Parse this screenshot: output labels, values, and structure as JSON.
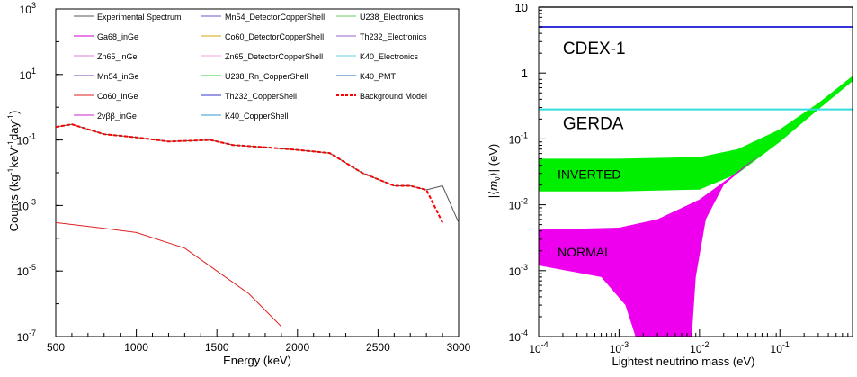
{
  "chart_data": [
    {
      "type": "line",
      "xlabel": "Energy (keV)",
      "ylabel": "Counts (kg",
      "ylabel_sup1": "-1",
      "ylabel_mid1": "keV",
      "ylabel_sup2": "-1",
      "ylabel_mid2": "day",
      "ylabel_sup3": "-1",
      "ylabel_end": ")",
      "x_ticks": [
        "500",
        "1000",
        "1500",
        "2000",
        "2500",
        "3000"
      ],
      "y_tick_mantissa": [
        "10",
        "10",
        "10",
        "10",
        "10",
        "10"
      ],
      "y_tick_exponents": [
        "3",
        "1",
        "-1",
        "-3",
        "-5",
        "-7"
      ],
      "xlim": [
        500,
        3000
      ],
      "ylim": [
        1e-07,
        1000
      ],
      "yscale": "log",
      "legend_placement": "top",
      "series": [
        {
          "name": "Experimental Spectrum",
          "color": "#555555",
          "values": [
            [
              500,
              0.25
            ],
            [
              600,
              0.3
            ],
            [
              800,
              0.15
            ],
            [
              1000,
              0.12
            ],
            [
              1200,
              0.09
            ],
            [
              1460,
              0.1
            ],
            [
              1600,
              0.07
            ],
            [
              1800,
              0.06
            ],
            [
              2000,
              0.05
            ],
            [
              2200,
              0.04
            ],
            [
              2400,
              0.01
            ],
            [
              2600,
              0.004
            ],
            [
              2700,
              0.004
            ],
            [
              2800,
              0.003
            ],
            [
              2900,
              0.004
            ],
            [
              3000,
              0.0003
            ]
          ]
        },
        {
          "name": "Ga68_inGe",
          "color": "#cc00cc",
          "values": []
        },
        {
          "name": "Zn65_inGe",
          "color": "#e07bcf",
          "values": []
        },
        {
          "name": "Mn54_inGe",
          "color": "#7744aa",
          "values": []
        },
        {
          "name": "Co60_inGe",
          "color": "#dd2222",
          "values": [
            [
              500,
              0.0003
            ],
            [
              800,
              0.0002
            ],
            [
              1000,
              0.00015
            ],
            [
              1300,
              5e-05
            ],
            [
              1500,
              1e-05
            ],
            [
              1700,
              2e-06
            ],
            [
              1900,
              2e-07
            ]
          ]
        },
        {
          "name": "2vββ_inGe",
          "color": "#cc22cc",
          "values": []
        },
        {
          "name": "Mn54_DetectorCopperShell",
          "color": "#6a5acd",
          "values": []
        },
        {
          "name": "Co60_DetectorCopperShell",
          "color": "#ccaa00",
          "values": []
        },
        {
          "name": "Zn65_DetectorCopperShell",
          "color": "#f0a0e0",
          "values": []
        },
        {
          "name": "U238_Rn_CopperShell",
          "color": "#33cc33",
          "values": []
        },
        {
          "name": "Th232_CopperShell",
          "color": "#3333cc",
          "values": []
        },
        {
          "name": "K40_CopperShell",
          "color": "#3399cc",
          "values": []
        },
        {
          "name": "U238_Electronics",
          "color": "#66cc66",
          "values": []
        },
        {
          "name": "Th232_Electronics",
          "color": "#9966cc",
          "values": []
        },
        {
          "name": "K40_Electronics",
          "color": "#66ccdd",
          "values": []
        },
        {
          "name": "K40_PMT",
          "color": "#2266aa",
          "values": []
        },
        {
          "name": "Background Model",
          "color": "#ff0000",
          "values": [
            [
              500,
              0.25
            ],
            [
              600,
              0.3
            ],
            [
              800,
              0.15
            ],
            [
              1000,
              0.12
            ],
            [
              1200,
              0.09
            ],
            [
              1460,
              0.1
            ],
            [
              1600,
              0.07
            ],
            [
              1800,
              0.06
            ],
            [
              2000,
              0.05
            ],
            [
              2200,
              0.04
            ],
            [
              2400,
              0.01
            ],
            [
              2600,
              0.004
            ],
            [
              2700,
              0.004
            ],
            [
              2800,
              0.003
            ],
            [
              2900,
              0.0003
            ]
          ]
        }
      ]
    },
    {
      "type": "area",
      "xlabel": "Lightest neutrino mass (eV)",
      "ylabel": "(eV)",
      "x_tick_mantissa": [
        "10",
        "10",
        "10",
        "10"
      ],
      "x_tick_exponents": [
        "-4",
        "-3",
        "-2",
        "-1"
      ],
      "y_ticks": [
        "10",
        "1"
      ],
      "y_tick_mantissa": [
        "10",
        "10",
        "10",
        "10"
      ],
      "y_tick_exponents": [
        "-1",
        "-2",
        "-3",
        "-4"
      ],
      "xlim": [
        0.0001,
        0.8
      ],
      "ylim": [
        0.0001,
        10
      ],
      "xscale": "log",
      "yscale": "log",
      "limits": [
        {
          "label": "CDEX-1",
          "value": 5,
          "color": "#3333dd"
        },
        {
          "label": "GERDA",
          "value": 0.28,
          "color": "#33dddd"
        },
        {
          "label": "",
          "value": 10,
          "color": "#aaaaaa"
        }
      ],
      "bands": [
        {
          "label": "INVERTED",
          "color": "#00ee00",
          "upper": [
            [
              0.0001,
              0.05
            ],
            [
              0.001,
              0.05
            ],
            [
              0.01,
              0.053
            ],
            [
              0.03,
              0.07
            ],
            [
              0.1,
              0.14
            ],
            [
              0.3,
              0.35
            ],
            [
              0.8,
              0.9
            ]
          ],
          "lower": [
            [
              0.0001,
              0.016
            ],
            [
              0.001,
              0.016
            ],
            [
              0.01,
              0.017
            ],
            [
              0.03,
              0.03
            ],
            [
              0.1,
              0.09
            ],
            [
              0.3,
              0.28
            ],
            [
              0.8,
              0.75
            ]
          ]
        },
        {
          "label": "NORMAL",
          "color": "#ee00ee",
          "upper": [
            [
              0.0001,
              0.0042
            ],
            [
              0.001,
              0.0045
            ],
            [
              0.003,
              0.006
            ],
            [
              0.01,
              0.012
            ],
            [
              0.03,
              0.032
            ],
            [
              0.06,
              0.062
            ]
          ],
          "lower": [
            [
              0.0001,
              0.0012
            ],
            [
              0.0006,
              0.0008
            ],
            [
              0.0012,
              0.0003
            ],
            [
              0.0016,
              0.0001
            ],
            [
              0.008,
              0.0001
            ],
            [
              0.009,
              0.0008
            ],
            [
              0.012,
              0.006
            ],
            [
              0.02,
              0.02
            ],
            [
              0.06,
              0.062
            ]
          ]
        }
      ]
    }
  ]
}
